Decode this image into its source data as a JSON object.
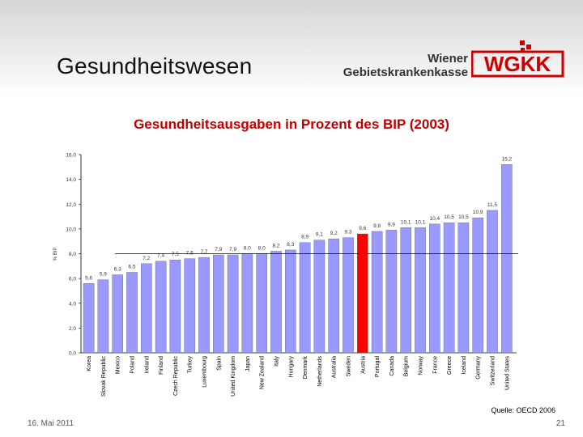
{
  "header": {
    "title": "Gesundheitswesen",
    "org_line1": "Wiener",
    "org_line2": "Gebietskrankenkasse",
    "logo_text": "WGKK"
  },
  "colors": {
    "bar": "#9999ff",
    "highlight": "#ff0000",
    "title": "#c00000",
    "logo": "#cc0000"
  },
  "chart_data": {
    "type": "bar",
    "title": "Gesundheitsausgaben in Prozent des BIP (2003)",
    "ylabel": "% BIP",
    "xlabel": "",
    "ylim": [
      0,
      16
    ],
    "yticks": [
      "0,0",
      "2,0",
      "4,0",
      "6,0",
      "8,0",
      "10,0",
      "12,0",
      "14,0",
      "16,0"
    ],
    "average_line": 8.0,
    "highlight_category": "Austria",
    "categories": [
      "Korea",
      "Slovak Republic",
      "Mexico",
      "Poland",
      "Ireland",
      "Finland",
      "Czech Republic",
      "Turkey",
      "Luxembourg",
      "Spain",
      "United Kingdom",
      "Japan",
      "New Zealand",
      "Italy",
      "Hungary",
      "Denmark",
      "Netherlands",
      "Australia",
      "Sweden",
      "Austria",
      "Portugal",
      "Canada",
      "Belgium",
      "Norway",
      "France",
      "Greece",
      "Iceland",
      "Germany",
      "Switzerland",
      "United States"
    ],
    "values": [
      5.6,
      5.9,
      6.3,
      6.5,
      7.2,
      7.4,
      7.5,
      7.6,
      7.7,
      7.9,
      7.9,
      8.0,
      8.0,
      8.2,
      8.3,
      8.9,
      9.1,
      9.2,
      9.3,
      9.6,
      9.8,
      9.9,
      10.1,
      10.1,
      10.4,
      10.5,
      10.5,
      10.9,
      11.5,
      15.2
    ],
    "labels": [
      "5,6",
      "5,9",
      "6,3",
      "6,5",
      "7,2",
      "7,4",
      "7,5",
      "7,6",
      "7,7",
      "7,9",
      "7,9",
      "8,0",
      "8,0",
      "8,2",
      "8,3",
      "8,9",
      "9,1",
      "9,2",
      "9,3",
      "9,6",
      "9,8",
      "9,9",
      "10,1",
      "10,1",
      "10,4",
      "10,5",
      "10,5",
      "10,9",
      "11,5",
      "15,2"
    ]
  },
  "footer": {
    "source": "Quelle: OECD 2006",
    "date": "16. Mai 2011",
    "page": "21"
  }
}
